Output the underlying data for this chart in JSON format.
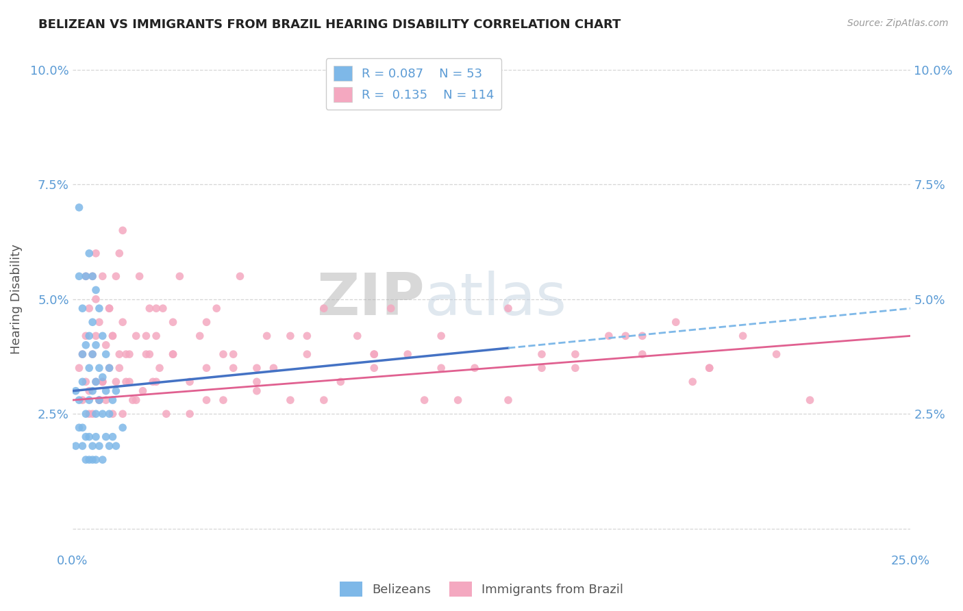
{
  "title": "BELIZEAN VS IMMIGRANTS FROM BRAZIL HEARING DISABILITY CORRELATION CHART",
  "source": "Source: ZipAtlas.com",
  "ylabel": "Hearing Disability",
  "xlim": [
    0.0,
    0.25
  ],
  "ylim": [
    -0.005,
    0.105
  ],
  "yticks": [
    0.0,
    0.025,
    0.05,
    0.075,
    0.1
  ],
  "yticklabels": [
    "",
    "2.5%",
    "5.0%",
    "7.5%",
    "10.0%"
  ],
  "belizean_color": "#7EB8E8",
  "brazil_color": "#F4A8C0",
  "trend_blue_solid": "#4472C4",
  "trend_blue_dash": "#7EB8E8",
  "trend_pink": "#E06090",
  "R_belizean": 0.087,
  "N_belizean": 53,
  "R_brazil": 0.135,
  "N_brazil": 114,
  "legend_label_1": "Belizeans",
  "legend_label_2": "Immigrants from Brazil",
  "watermark_zip": "ZIP",
  "watermark_atlas": "atlas",
  "background_color": "#FFFFFF",
  "grid_color": "#CCCCCC",
  "axis_color": "#5B9BD5",
  "title_color": "#222222",
  "source_color": "#999999",
  "belizean_x": [
    0.001,
    0.002,
    0.002,
    0.003,
    0.003,
    0.003,
    0.004,
    0.004,
    0.004,
    0.005,
    0.005,
    0.005,
    0.005,
    0.006,
    0.006,
    0.006,
    0.006,
    0.007,
    0.007,
    0.007,
    0.007,
    0.008,
    0.008,
    0.008,
    0.009,
    0.009,
    0.009,
    0.01,
    0.01,
    0.011,
    0.011,
    0.012,
    0.013,
    0.001,
    0.002,
    0.002,
    0.003,
    0.003,
    0.004,
    0.004,
    0.005,
    0.005,
    0.006,
    0.006,
    0.007,
    0.007,
    0.008,
    0.009,
    0.01,
    0.011,
    0.012,
    0.013,
    0.015
  ],
  "belizean_y": [
    0.03,
    0.055,
    0.07,
    0.032,
    0.038,
    0.048,
    0.025,
    0.04,
    0.055,
    0.028,
    0.035,
    0.042,
    0.06,
    0.03,
    0.038,
    0.045,
    0.055,
    0.025,
    0.032,
    0.04,
    0.052,
    0.028,
    0.035,
    0.048,
    0.025,
    0.033,
    0.042,
    0.03,
    0.038,
    0.025,
    0.035,
    0.028,
    0.03,
    0.018,
    0.022,
    0.028,
    0.018,
    0.022,
    0.015,
    0.02,
    0.015,
    0.02,
    0.015,
    0.018,
    0.015,
    0.02,
    0.018,
    0.015,
    0.02,
    0.018,
    0.02,
    0.018,
    0.022
  ],
  "brazil_x": [
    0.002,
    0.003,
    0.004,
    0.004,
    0.005,
    0.005,
    0.006,
    0.006,
    0.007,
    0.007,
    0.008,
    0.008,
    0.009,
    0.009,
    0.01,
    0.01,
    0.011,
    0.011,
    0.012,
    0.012,
    0.013,
    0.013,
    0.014,
    0.014,
    0.015,
    0.015,
    0.016,
    0.017,
    0.018,
    0.019,
    0.02,
    0.021,
    0.022,
    0.023,
    0.024,
    0.025,
    0.026,
    0.027,
    0.028,
    0.03,
    0.032,
    0.035,
    0.038,
    0.04,
    0.043,
    0.045,
    0.048,
    0.05,
    0.055,
    0.058,
    0.06,
    0.065,
    0.07,
    0.075,
    0.08,
    0.085,
    0.09,
    0.095,
    0.1,
    0.105,
    0.11,
    0.12,
    0.13,
    0.14,
    0.15,
    0.16,
    0.17,
    0.18,
    0.19,
    0.2,
    0.003,
    0.005,
    0.007,
    0.009,
    0.011,
    0.014,
    0.016,
    0.019,
    0.022,
    0.025,
    0.03,
    0.035,
    0.04,
    0.048,
    0.055,
    0.065,
    0.075,
    0.09,
    0.11,
    0.13,
    0.15,
    0.17,
    0.19,
    0.004,
    0.006,
    0.008,
    0.012,
    0.017,
    0.023,
    0.03,
    0.04,
    0.055,
    0.07,
    0.09,
    0.115,
    0.14,
    0.165,
    0.21,
    0.185,
    0.22,
    0.007,
    0.015,
    0.025,
    0.045
  ],
  "brazil_y": [
    0.035,
    0.028,
    0.042,
    0.055,
    0.03,
    0.048,
    0.025,
    0.038,
    0.032,
    0.05,
    0.028,
    0.045,
    0.032,
    0.055,
    0.028,
    0.04,
    0.035,
    0.048,
    0.025,
    0.042,
    0.055,
    0.032,
    0.038,
    0.06,
    0.025,
    0.045,
    0.032,
    0.038,
    0.028,
    0.042,
    0.055,
    0.03,
    0.038,
    0.048,
    0.032,
    0.042,
    0.035,
    0.048,
    0.025,
    0.038,
    0.055,
    0.032,
    0.042,
    0.035,
    0.048,
    0.028,
    0.038,
    0.055,
    0.032,
    0.042,
    0.035,
    0.028,
    0.038,
    0.048,
    0.032,
    0.042,
    0.035,
    0.048,
    0.038,
    0.028,
    0.042,
    0.035,
    0.048,
    0.038,
    0.035,
    0.042,
    0.038,
    0.045,
    0.035,
    0.042,
    0.038,
    0.025,
    0.042,
    0.032,
    0.048,
    0.035,
    0.038,
    0.028,
    0.042,
    0.032,
    0.038,
    0.025,
    0.045,
    0.035,
    0.03,
    0.042,
    0.028,
    0.038,
    0.035,
    0.028,
    0.038,
    0.042,
    0.035,
    0.032,
    0.055,
    0.028,
    0.042,
    0.032,
    0.038,
    0.045,
    0.028,
    0.035,
    0.042,
    0.038,
    0.028,
    0.035,
    0.042,
    0.038,
    0.032,
    0.028,
    0.06,
    0.065,
    0.048,
    0.038
  ],
  "trend_bel_x0": 0.0,
  "trend_bel_y0": 0.03,
  "trend_bel_x1": 0.25,
  "trend_bel_y1": 0.048,
  "trend_bel_solid_x1": 0.13,
  "trend_bra_x0": 0.0,
  "trend_bra_y0": 0.028,
  "trend_bra_x1": 0.25,
  "trend_bra_y1": 0.042
}
